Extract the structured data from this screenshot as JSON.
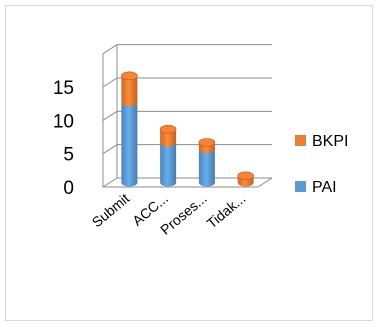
{
  "chart_data": {
    "type": "bar",
    "stacked": true,
    "three_d": true,
    "categories": [
      "Submit",
      "ACC...",
      "Proses...",
      "Tidak..."
    ],
    "series": [
      {
        "name": "PAI",
        "values": [
          12,
          6,
          5,
          0
        ],
        "color": "#5b9bd5"
      },
      {
        "name": "BKPI",
        "values": [
          4,
          2,
          1,
          1
        ],
        "color": "#ed7d31"
      }
    ],
    "ylim": [
      0,
      15
    ],
    "yticks": [
      "0",
      "5",
      "10",
      "15"
    ],
    "grid": true,
    "legend": "right"
  }
}
